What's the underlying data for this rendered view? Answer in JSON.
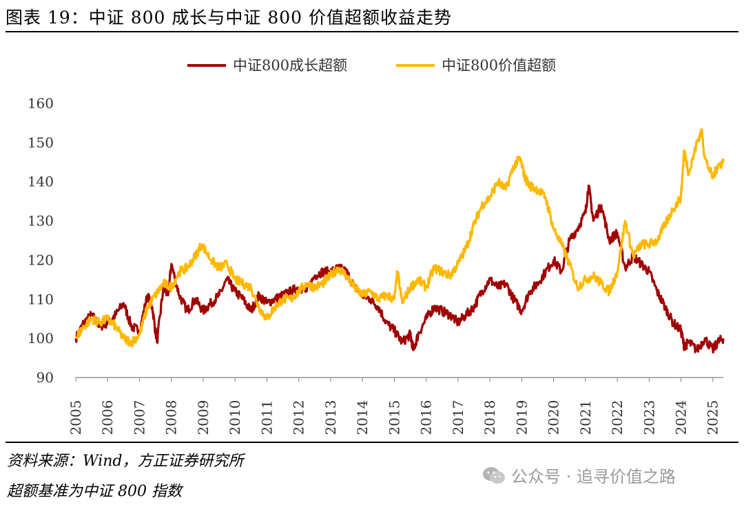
{
  "title": "图表 19：中证 800 成长与中证 800 价值超额收益走势",
  "source": "资料来源：Wind，方正证券研究所",
  "note": "超额基准为中证 800 指数",
  "watermark": "公众号 · 追寻价值之路",
  "chart_data": {
    "type": "line",
    "xlim": [
      2005.0,
      2025.33
    ],
    "ylim": [
      90,
      160
    ],
    "yticks": [
      90,
      100,
      110,
      120,
      130,
      140,
      150,
      160
    ],
    "xtick_labels": [
      "2005",
      "2006",
      "2007",
      "2008",
      "2009",
      "2010",
      "2011",
      "2012",
      "2013",
      "2014",
      "2015",
      "2016",
      "2017",
      "2018",
      "2019",
      "2020",
      "2021",
      "2022",
      "2023",
      "2024",
      "2025"
    ],
    "legend_position": "top-center",
    "grid": false,
    "series": [
      {
        "name": "中证800成长超额",
        "color": "#a00000",
        "x": [
          2005.0,
          2005.25,
          2005.5,
          2005.75,
          2006.0,
          2006.25,
          2006.5,
          2006.75,
          2007.0,
          2007.25,
          2007.4,
          2007.55,
          2007.75,
          2007.9,
          2008.0,
          2008.25,
          2008.5,
          2008.75,
          2009.0,
          2009.25,
          2009.5,
          2009.75,
          2010.0,
          2010.25,
          2010.5,
          2010.75,
          2011.0,
          2011.25,
          2011.5,
          2011.75,
          2012.0,
          2012.25,
          2012.5,
          2012.75,
          2013.0,
          2013.25,
          2013.5,
          2013.75,
          2014.0,
          2014.25,
          2014.5,
          2014.75,
          2015.0,
          2015.25,
          2015.5,
          2015.6,
          2015.75,
          2016.0,
          2016.25,
          2016.5,
          2016.75,
          2017.0,
          2017.25,
          2017.5,
          2017.75,
          2018.0,
          2018.25,
          2018.5,
          2018.75,
          2019.0,
          2019.25,
          2019.5,
          2019.75,
          2020.0,
          2020.25,
          2020.5,
          2020.75,
          2021.0,
          2021.1,
          2021.25,
          2021.5,
          2021.75,
          2022.0,
          2022.25,
          2022.5,
          2022.75,
          2023.0,
          2023.25,
          2023.5,
          2023.75,
          2024.0,
          2024.1,
          2024.25,
          2024.5,
          2024.75,
          2025.0,
          2025.15,
          2025.33
        ],
        "values": [
          100,
          104,
          106,
          103,
          104,
          106,
          109,
          103,
          102,
          111,
          108,
          99,
          113,
          111,
          119,
          111,
          107,
          110,
          107,
          109,
          111,
          115,
          112,
          110,
          107,
          111,
          109,
          110,
          111,
          112,
          113,
          112,
          116,
          117,
          117,
          118,
          117,
          113,
          111,
          110,
          108,
          104,
          102,
          99,
          101,
          97,
          101,
          105,
          108,
          107,
          106,
          104,
          106,
          108,
          112,
          115,
          113,
          114,
          110,
          107,
          112,
          114,
          117,
          120,
          117,
          125,
          128,
          132,
          139,
          130,
          134,
          125,
          127,
          118,
          121,
          119,
          117,
          112,
          108,
          104,
          102,
          98,
          99,
          97,
          100,
          97,
          99,
          100
        ]
      },
      {
        "name": "中证800价值超额",
        "color": "#ffb800",
        "x": [
          2005.0,
          2005.25,
          2005.5,
          2005.75,
          2006.0,
          2006.25,
          2006.5,
          2006.75,
          2007.0,
          2007.25,
          2007.5,
          2007.75,
          2008.0,
          2008.25,
          2008.5,
          2008.75,
          2008.95,
          2009.25,
          2009.5,
          2009.75,
          2010.0,
          2010.25,
          2010.5,
          2010.75,
          2011.0,
          2011.25,
          2011.5,
          2011.75,
          2012.0,
          2012.25,
          2012.5,
          2012.75,
          2013.0,
          2013.25,
          2013.5,
          2013.75,
          2014.0,
          2014.25,
          2014.5,
          2014.75,
          2015.0,
          2015.1,
          2015.25,
          2015.5,
          2015.75,
          2016.0,
          2016.25,
          2016.5,
          2016.75,
          2017.0,
          2017.25,
          2017.5,
          2017.75,
          2018.0,
          2018.25,
          2018.5,
          2018.75,
          2018.95,
          2019.1,
          2019.25,
          2019.5,
          2019.75,
          2020.0,
          2020.25,
          2020.5,
          2020.75,
          2021.0,
          2021.25,
          2021.5,
          2021.75,
          2022.0,
          2022.25,
          2022.5,
          2022.75,
          2023.0,
          2023.25,
          2023.5,
          2023.75,
          2024.0,
          2024.1,
          2024.25,
          2024.5,
          2024.65,
          2024.75,
          2025.0,
          2025.15,
          2025.33
        ],
        "values": [
          100,
          103,
          105,
          104,
          105,
          103,
          100,
          99,
          101,
          108,
          111,
          114,
          113,
          117,
          118,
          121,
          124,
          120,
          118,
          119,
          115,
          114,
          113,
          108,
          105,
          108,
          110,
          110,
          112,
          114,
          113,
          114,
          116,
          118,
          116,
          113,
          111,
          112,
          110,
          111,
          110,
          117,
          109,
          113,
          115,
          113,
          118,
          117,
          116,
          119,
          123,
          129,
          134,
          136,
          140,
          138,
          144,
          146,
          141,
          139,
          138,
          136,
          128,
          124,
          119,
          113,
          115,
          116,
          114,
          112,
          117,
          130,
          121,
          124,
          124,
          125,
          129,
          133,
          136,
          148,
          142,
          150,
          153,
          146,
          141,
          144,
          145
        ]
      }
    ]
  }
}
